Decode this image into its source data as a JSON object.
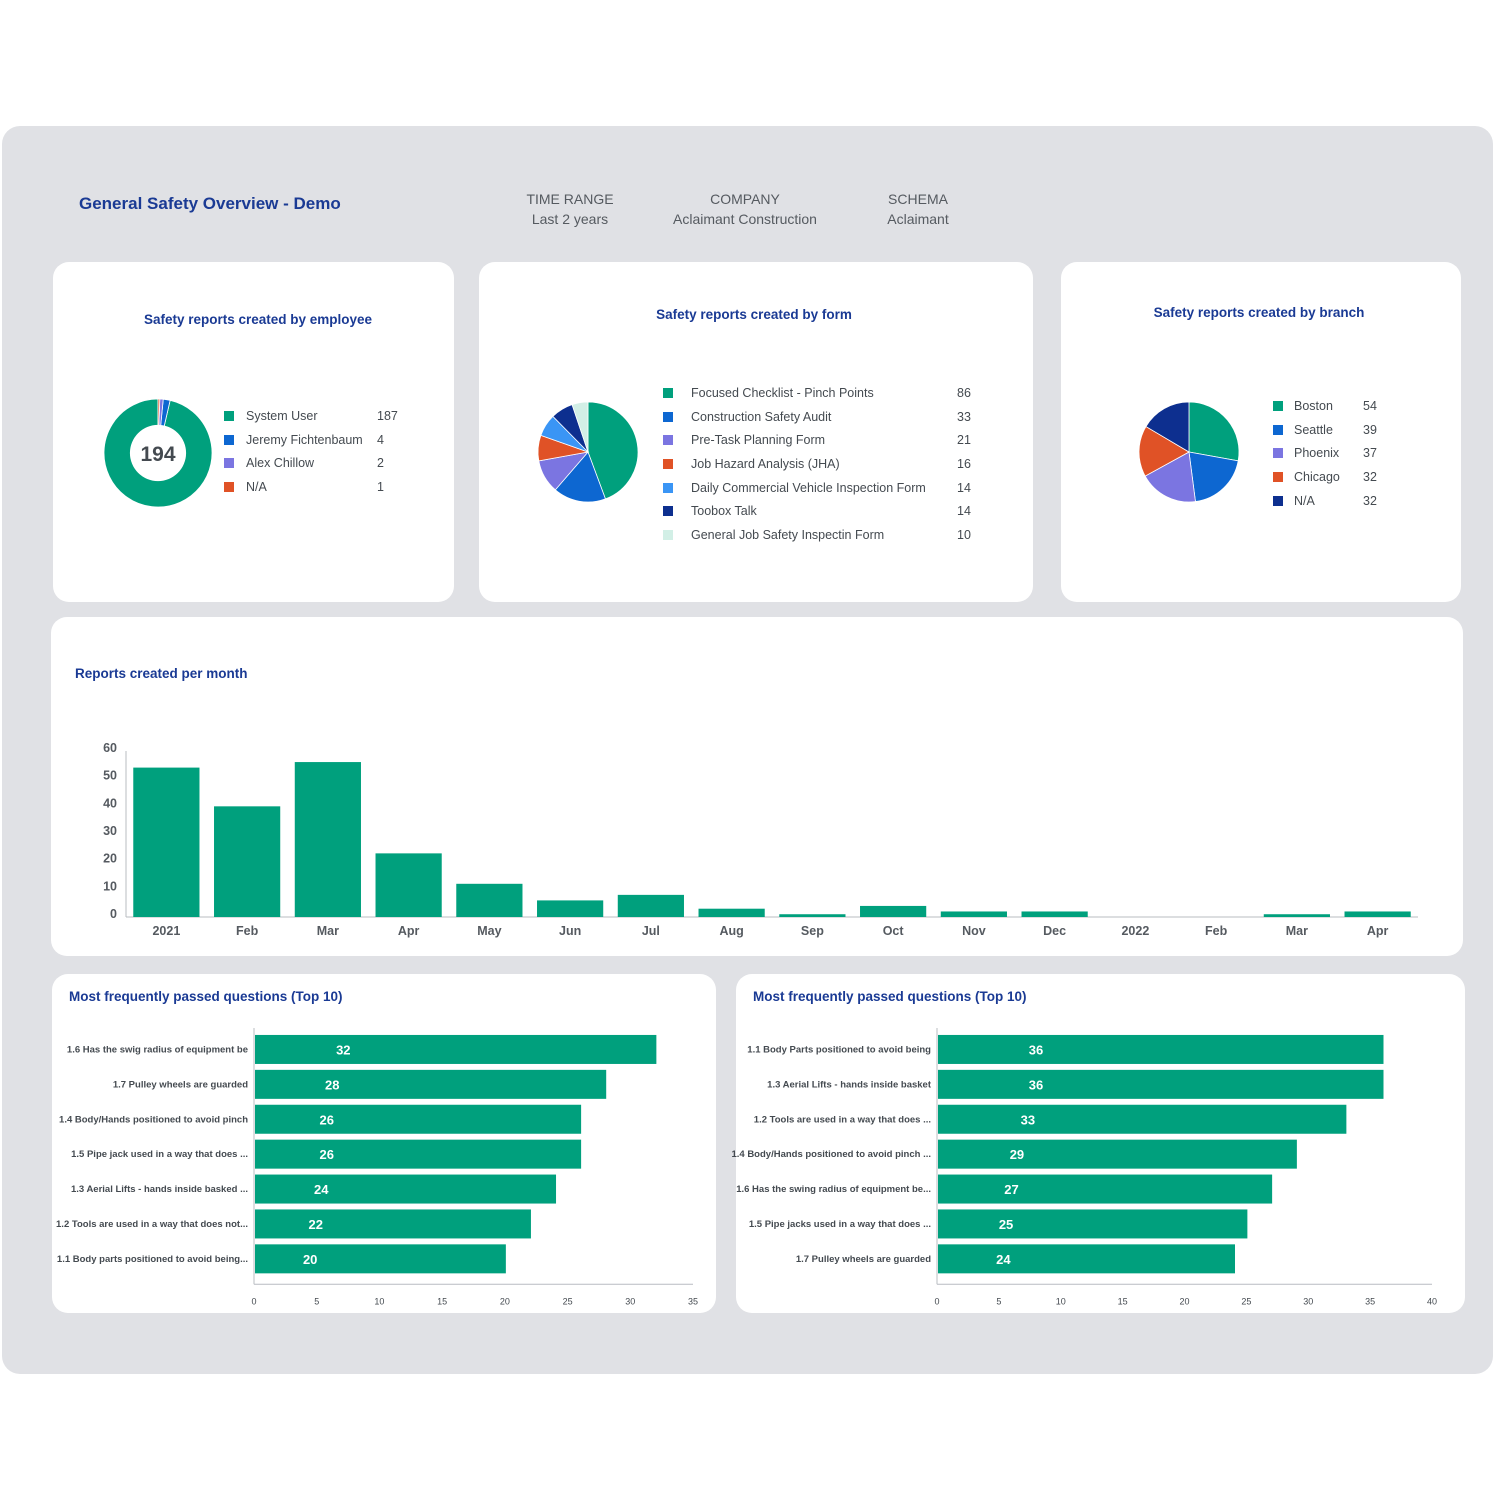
{
  "header": {
    "title": "General Safety Overview - Demo",
    "filters": [
      {
        "label": "TIME RANGE",
        "value": "Last 2 years"
      },
      {
        "label": "COMPANY",
        "value": "Aclaimant Construction"
      },
      {
        "label": "SCHEMA",
        "value": "Aclaimant"
      }
    ]
  },
  "colors": {
    "teal": "#00a07d",
    "blue": "#0d67d1",
    "purple": "#7b75e1",
    "orange": "#e05226",
    "light_blue": "#3a95f5",
    "navy": "#0d2f8f",
    "mint": "#d2efe6",
    "title": "#1a3a94"
  },
  "cards": {
    "employee": {
      "title": "Safety reports created by employee",
      "total": "194",
      "items": [
        {
          "label": "System User",
          "value": 187,
          "color": "#00a07d"
        },
        {
          "label": "Jeremy Fichtenbaum",
          "value": 4,
          "color": "#0d67d1"
        },
        {
          "label": "Alex Chillow",
          "value": 2,
          "color": "#7b75e1"
        },
        {
          "label": "N/A",
          "value": 1,
          "color": "#e05226"
        }
      ]
    },
    "form": {
      "title": "Safety reports created by form",
      "items": [
        {
          "label": "Focused Checklist - Pinch Points",
          "value": 86,
          "color": "#00a07d"
        },
        {
          "label": "Construction Safety Audit",
          "value": 33,
          "color": "#0d67d1"
        },
        {
          "label": "Pre-Task Planning Form",
          "value": 21,
          "color": "#7b75e1"
        },
        {
          "label": "Job Hazard Analysis (JHA)",
          "value": 16,
          "color": "#e05226"
        },
        {
          "label": "Daily Commercial Vehicle Inspection Form",
          "value": 14,
          "color": "#3a95f5"
        },
        {
          "label": "Toobox Talk",
          "value": 14,
          "color": "#0d2f8f"
        },
        {
          "label": "General Job Safety Inspectin Form",
          "value": 10,
          "color": "#d2efe6"
        }
      ]
    },
    "branch": {
      "title": "Safety reports created by branch",
      "items": [
        {
          "label": "Boston",
          "value": 54,
          "color": "#00a07d"
        },
        {
          "label": "Seattle",
          "value": 39,
          "color": "#0d67d1"
        },
        {
          "label": "Phoenix",
          "value": 37,
          "color": "#7b75e1"
        },
        {
          "label": "Chicago",
          "value": 32,
          "color": "#e05226"
        },
        {
          "label": "N/A",
          "value": 32,
          "color": "#0d2f8f"
        }
      ]
    },
    "monthly": {
      "title": "Reports created per month"
    },
    "questions_left": {
      "title": "Most frequently passed questions (Top 10)"
    },
    "questions_right": {
      "title": "Most frequently passed questions (Top 10)"
    }
  },
  "chart_data": [
    {
      "type": "pie",
      "title": "Safety reports created by employee",
      "categories": [
        "System User",
        "Jeremy Fichtenbaum",
        "Alex Chillow",
        "N/A"
      ],
      "values": [
        187,
        4,
        2,
        1
      ],
      "donut": true,
      "center_label": "194"
    },
    {
      "type": "pie",
      "title": "Safety reports created by form",
      "categories": [
        "Focused Checklist - Pinch Points",
        "Construction Safety Audit",
        "Pre-Task Planning Form",
        "Job Hazard Analysis (JHA)",
        "Daily Commercial Vehicle Inspection Form",
        "Toobox Talk",
        "General Job Safety Inspectin Form"
      ],
      "values": [
        86,
        33,
        21,
        16,
        14,
        14,
        10
      ]
    },
    {
      "type": "pie",
      "title": "Safety reports created by branch",
      "categories": [
        "Boston",
        "Seattle",
        "Phoenix",
        "Chicago",
        "N/A"
      ],
      "values": [
        54,
        39,
        37,
        32,
        32
      ]
    },
    {
      "type": "bar",
      "title": "Reports created per month",
      "categories": [
        "2021",
        "Feb",
        "Mar",
        "Apr",
        "May",
        "Jun",
        "Jul",
        "Aug",
        "Sep",
        "Oct",
        "Nov",
        "Dec",
        "2022",
        "Feb",
        "Mar",
        "Apr"
      ],
      "values": [
        54,
        40,
        56,
        23,
        12,
        6,
        8,
        3,
        1,
        4,
        2,
        2,
        0,
        0,
        1,
        2
      ],
      "ylim": [
        0,
        60
      ],
      "yticks": [
        0,
        10,
        20,
        30,
        40,
        50,
        60
      ],
      "grid": false
    },
    {
      "type": "bar",
      "orientation": "horizontal",
      "title": "Most frequently passed questions (Top 10)",
      "categories": [
        "1.6 Has the swig radius of equipment be",
        "1.7 Pulley wheels are guarded",
        "1.4 Body/Hands positioned to avoid pinch",
        "1.5 Pipe jack used in a way that does ...",
        "1.3 Aerial Lifts - hands inside basked ...",
        "1.2 Tools are used in a way that does not...",
        "1.1 Body parts positioned to avoid being..."
      ],
      "values": [
        32,
        28,
        26,
        26,
        24,
        22,
        20
      ],
      "xlim": [
        0,
        35
      ],
      "xticks": [
        0,
        5,
        10,
        15,
        20,
        25,
        30,
        35
      ]
    },
    {
      "type": "bar",
      "orientation": "horizontal",
      "title": "Most frequently passed questions (Top 10)",
      "categories": [
        "1.1 Body Parts positioned to avoid being",
        "1.3 Aerial Lifts - hands inside basket",
        "1.2 Tools are used in a way that does ...",
        "1.4 Body/Hands positioned to avoid pinch ...",
        "1.6 Has the swing radius of equipment be...",
        "1.5 Pipe jacks used in a way that does ...",
        "1.7 Pulley wheels are guarded"
      ],
      "values": [
        36,
        36,
        33,
        29,
        27,
        25,
        24
      ],
      "xlim": [
        0,
        40
      ],
      "xticks": [
        0,
        5,
        10,
        15,
        20,
        25,
        30,
        35,
        40
      ]
    }
  ]
}
